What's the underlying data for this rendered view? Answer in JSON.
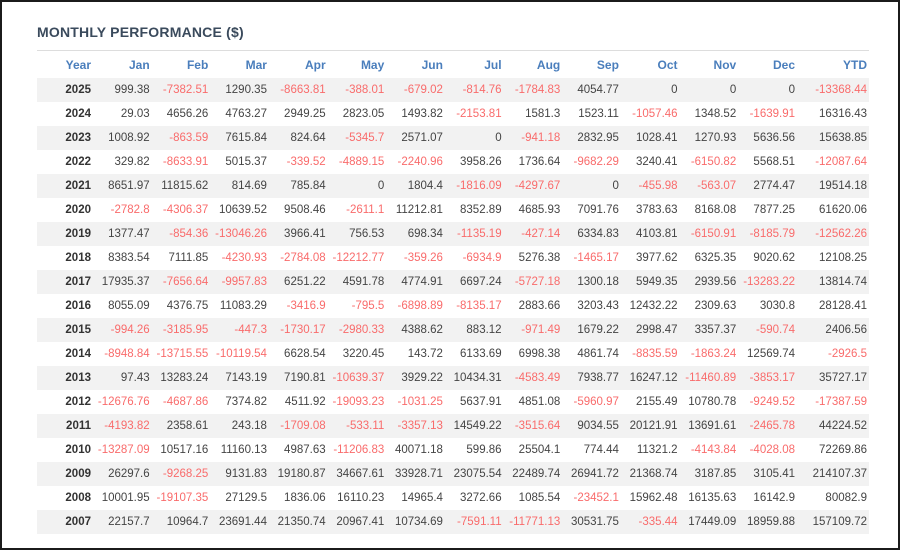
{
  "title": "MONTHLY PERFORMANCE ($)",
  "colors": {
    "header_text": "#4a7ebc",
    "title_text": "#3a4a5c",
    "positive_text": "#444444",
    "negative_text": "#f96b6b",
    "stripe_bg": "#f2f2f2",
    "page_border": "#1b1b1b"
  },
  "chart_data": {
    "type": "table",
    "title": "MONTHLY PERFORMANCE ($)",
    "columns": [
      "Year",
      "Jan",
      "Feb",
      "Mar",
      "Apr",
      "May",
      "Jun",
      "Jul",
      "Aug",
      "Sep",
      "Oct",
      "Nov",
      "Dec",
      "YTD"
    ],
    "rows": [
      {
        "year": "2025",
        "values": [
          "999.38",
          "-7382.51",
          "1290.35",
          "-8663.81",
          "-388.01",
          "-679.02",
          "-814.76",
          "-1784.83",
          "4054.77",
          "0",
          "0",
          "0",
          "-13368.44"
        ]
      },
      {
        "year": "2024",
        "values": [
          "29.03",
          "4656.26",
          "4763.27",
          "2949.25",
          "2823.05",
          "1493.82",
          "-2153.81",
          "1581.3",
          "1523.11",
          "-1057.46",
          "1348.52",
          "-1639.91",
          "16316.43"
        ]
      },
      {
        "year": "2023",
        "values": [
          "1008.92",
          "-863.59",
          "7615.84",
          "824.64",
          "-5345.7",
          "2571.07",
          "0",
          "-941.18",
          "2832.95",
          "1028.41",
          "1270.93",
          "5636.56",
          "15638.85"
        ]
      },
      {
        "year": "2022",
        "values": [
          "329.82",
          "-8633.91",
          "5015.37",
          "-339.52",
          "-4889.15",
          "-2240.96",
          "3958.26",
          "1736.64",
          "-9682.29",
          "3240.41",
          "-6150.82",
          "5568.51",
          "-12087.64"
        ]
      },
      {
        "year": "2021",
        "values": [
          "8651.97",
          "11815.62",
          "814.69",
          "785.84",
          "0",
          "1804.4",
          "-1816.09",
          "-4297.67",
          "0",
          "-455.98",
          "-563.07",
          "2774.47",
          "19514.18"
        ]
      },
      {
        "year": "2020",
        "values": [
          "-2782.8",
          "-4306.37",
          "10639.52",
          "9508.46",
          "-2611.1",
          "11212.81",
          "8352.89",
          "4685.93",
          "7091.76",
          "3783.63",
          "8168.08",
          "7877.25",
          "61620.06"
        ]
      },
      {
        "year": "2019",
        "values": [
          "1377.47",
          "-854.36",
          "-13046.26",
          "3966.41",
          "756.53",
          "698.34",
          "-1135.19",
          "-427.14",
          "6334.83",
          "4103.81",
          "-6150.91",
          "-8185.79",
          "-12562.26"
        ]
      },
      {
        "year": "2018",
        "values": [
          "8383.54",
          "7111.85",
          "-4230.93",
          "-2784.08",
          "-12212.77",
          "-359.26",
          "-6934.9",
          "5276.38",
          "-1465.17",
          "3977.62",
          "6325.35",
          "9020.62",
          "12108.25"
        ]
      },
      {
        "year": "2017",
        "values": [
          "17935.37",
          "-7656.64",
          "-9957.83",
          "6251.22",
          "4591.78",
          "4774.91",
          "6697.24",
          "-5727.18",
          "1300.18",
          "5949.35",
          "2939.56",
          "-13283.22",
          "13814.74"
        ]
      },
      {
        "year": "2016",
        "values": [
          "8055.09",
          "4376.75",
          "11083.29",
          "-3416.9",
          "-795.5",
          "-6898.89",
          "-8135.17",
          "2883.66",
          "3203.43",
          "12432.22",
          "2309.63",
          "3030.8",
          "28128.41"
        ]
      },
      {
        "year": "2015",
        "values": [
          "-994.26",
          "-3185.95",
          "-447.3",
          "-1730.17",
          "-2980.33",
          "4388.62",
          "883.12",
          "-971.49",
          "1679.22",
          "2998.47",
          "3357.37",
          "-590.74",
          "2406.56"
        ]
      },
      {
        "year": "2014",
        "values": [
          "-8948.84",
          "-13715.55",
          "-10119.54",
          "6628.54",
          "3220.45",
          "143.72",
          "6133.69",
          "6998.38",
          "4861.74",
          "-8835.59",
          "-1863.24",
          "12569.74",
          "-2926.5"
        ]
      },
      {
        "year": "2013",
        "values": [
          "97.43",
          "13283.24",
          "7143.19",
          "7190.81",
          "-10639.37",
          "3929.22",
          "10434.31",
          "-4583.49",
          "7938.77",
          "16247.12",
          "-11460.89",
          "-3853.17",
          "35727.17"
        ]
      },
      {
        "year": "2012",
        "values": [
          "-12676.76",
          "-4687.86",
          "7374.82",
          "4511.92",
          "-19093.23",
          "-1031.25",
          "5637.91",
          "4851.08",
          "-5960.97",
          "2155.49",
          "10780.78",
          "-9249.52",
          "-17387.59"
        ]
      },
      {
        "year": "2011",
        "values": [
          "-4193.82",
          "2358.61",
          "243.18",
          "-1709.08",
          "-533.11",
          "-3357.13",
          "14549.22",
          "-3515.64",
          "9034.55",
          "20121.91",
          "13691.61",
          "-2465.78",
          "44224.52"
        ]
      },
      {
        "year": "2010",
        "values": [
          "-13287.09",
          "10517.16",
          "11160.13",
          "4987.63",
          "-11206.83",
          "40071.18",
          "599.86",
          "25504.1",
          "774.44",
          "11321.2",
          "-4143.84",
          "-4028.08",
          "72269.86"
        ]
      },
      {
        "year": "2009",
        "values": [
          "26297.6",
          "-9268.25",
          "9131.83",
          "19180.87",
          "34667.61",
          "33928.71",
          "23075.54",
          "22489.74",
          "26941.72",
          "21368.74",
          "3187.85",
          "3105.41",
          "214107.37"
        ]
      },
      {
        "year": "2008",
        "values": [
          "10001.95",
          "-19107.35",
          "27129.5",
          "1836.06",
          "16110.23",
          "14965.4",
          "3272.66",
          "1085.54",
          "-23452.1",
          "15962.48",
          "16135.63",
          "16142.9",
          "80082.9"
        ]
      },
      {
        "year": "2007",
        "values": [
          "22157.7",
          "10964.7",
          "23691.44",
          "21350.74",
          "20967.41",
          "10734.69",
          "-7591.11",
          "-11771.13",
          "30531.75",
          "-335.44",
          "17449.09",
          "18959.88",
          "157109.72"
        ]
      }
    ]
  }
}
